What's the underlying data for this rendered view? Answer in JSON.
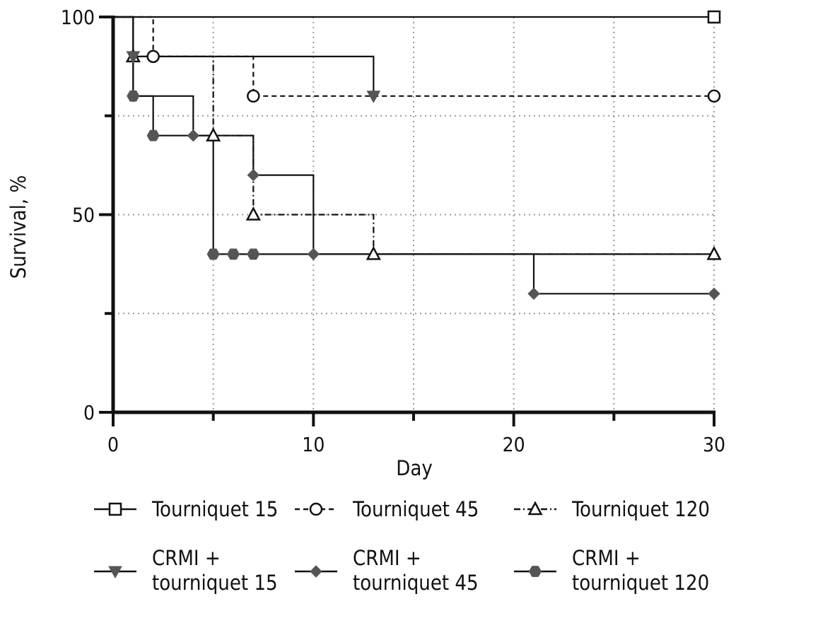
{
  "chart_data": {
    "type": "line",
    "subtype": "kaplan-meier survival (step) curves",
    "xlabel": "Day",
    "ylabel": "Survival, %",
    "xlim": [
      0,
      30
    ],
    "ylim": [
      0,
      100
    ],
    "x_ticks": [
      0,
      10,
      20,
      30
    ],
    "x_tick_labels": [
      "0",
      "10",
      "20",
      "30"
    ],
    "x_minor_ticks": [
      5,
      15,
      25
    ],
    "y_ticks": [
      0,
      50,
      100
    ],
    "y_tick_labels": [
      "0",
      "50",
      "100"
    ],
    "y_minor_ticks": [
      25,
      75
    ],
    "grid": "dotted at x=5,10,15,20,25,30 and y=25,50,75",
    "legend_position": "bottom",
    "series": [
      {
        "name": "Tourniquet 15",
        "line_style": "solid",
        "marker": "square-open",
        "steps": [
          [
            0,
            100
          ],
          [
            30,
            100
          ]
        ],
        "markers": [
          [
            30,
            100
          ]
        ]
      },
      {
        "name": "Tourniquet 45",
        "line_style": "dashed",
        "marker": "circle-open",
        "steps": [
          [
            0,
            100
          ],
          [
            2,
            90
          ],
          [
            7,
            80
          ],
          [
            30,
            80
          ]
        ],
        "markers": [
          [
            2,
            90
          ],
          [
            7,
            80
          ],
          [
            30,
            80
          ]
        ]
      },
      {
        "name": "Tourniquet 120",
        "line_style": "dashdot",
        "marker": "triangle-open",
        "steps": [
          [
            0,
            100
          ],
          [
            1,
            90
          ],
          [
            5,
            70
          ],
          [
            7,
            50
          ],
          [
            13,
            40
          ],
          [
            30,
            40
          ]
        ],
        "markers": [
          [
            1,
            90
          ],
          [
            5,
            70
          ],
          [
            7,
            50
          ],
          [
            13,
            40
          ],
          [
            30,
            40
          ]
        ]
      },
      {
        "name": "CRMI + tourniquet 15",
        "line_style": "solid",
        "marker": "triangle-down-filled",
        "steps": [
          [
            0,
            100
          ],
          [
            1,
            90
          ],
          [
            13,
            80
          ]
        ],
        "markers": [
          [
            1,
            90
          ],
          [
            13,
            80
          ]
        ]
      },
      {
        "name": "CRMI + tourniquet 45",
        "line_style": "solid",
        "marker": "diamond-filled",
        "steps": [
          [
            0,
            100
          ],
          [
            1,
            80
          ],
          [
            4,
            70
          ],
          [
            7,
            60
          ],
          [
            10,
            40
          ],
          [
            21,
            30
          ],
          [
            30,
            30
          ]
        ],
        "markers": [
          [
            1,
            80
          ],
          [
            4,
            70
          ],
          [
            7,
            60
          ],
          [
            10,
            40
          ],
          [
            21,
            30
          ],
          [
            30,
            30
          ]
        ]
      },
      {
        "name": "CRMI + tourniquet 120",
        "line_style": "solid",
        "marker": "hexagon-filled",
        "steps": [
          [
            0,
            100
          ],
          [
            1,
            80
          ],
          [
            2,
            70
          ],
          [
            5,
            40
          ],
          [
            30,
            40
          ]
        ],
        "markers": [
          [
            1,
            80
          ],
          [
            2,
            70
          ],
          [
            5,
            40
          ],
          [
            6,
            40
          ],
          [
            7,
            40
          ]
        ]
      }
    ],
    "legend": [
      {
        "label": "Tourniquet 15",
        "style": "solid",
        "marker": "square-open"
      },
      {
        "label": "Tourniquet 45",
        "style": "dashed",
        "marker": "circle-open"
      },
      {
        "label": "Tourniquet 120",
        "style": "dashdot",
        "marker": "triangle-open"
      },
      {
        "label": "CRMI +\ntourniquet 15",
        "style": "solid",
        "marker": "triangle-down-filled"
      },
      {
        "label": "CRMI +\ntourniquet 45",
        "style": "solid",
        "marker": "diamond-filled"
      },
      {
        "label": "CRMI +\ntourniquet 120",
        "style": "solid",
        "marker": "hexagon-filled"
      }
    ],
    "colors": {
      "line": "#111111",
      "filled_marker": "#555555",
      "grid": "#9a9a9a"
    }
  }
}
